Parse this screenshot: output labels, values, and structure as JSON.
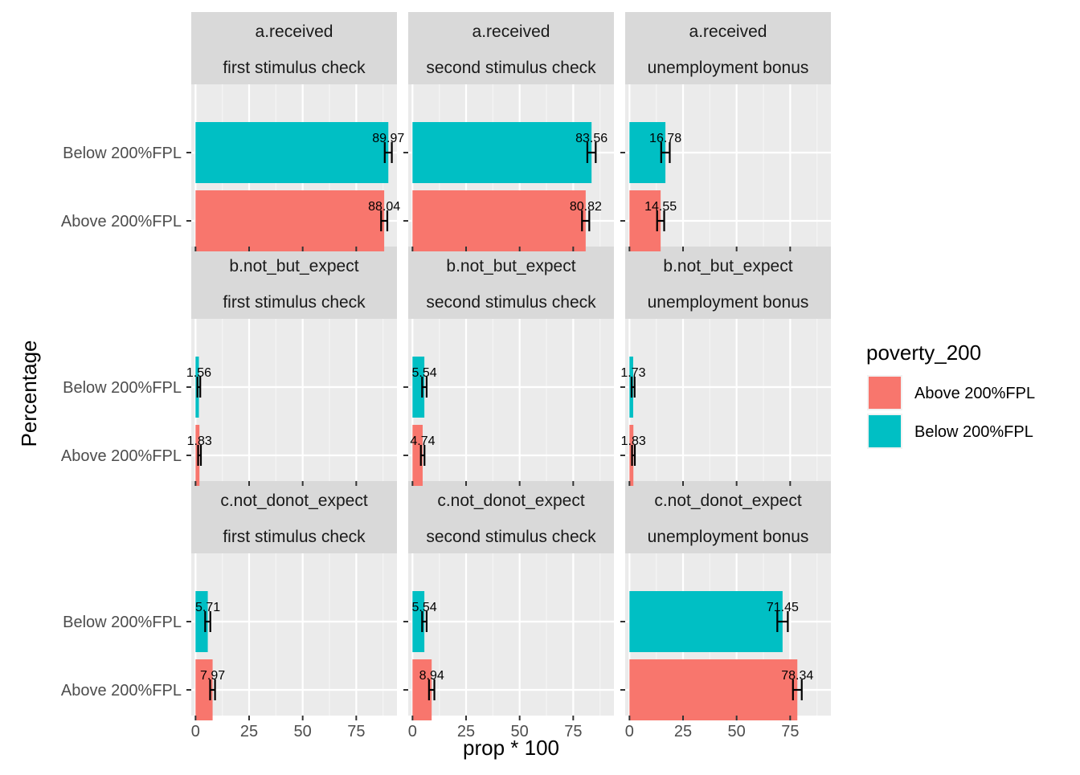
{
  "chart_data": {
    "type": "bar",
    "orientation": "horizontal",
    "facet_rows": [
      "a.received",
      "b.not_but_expect",
      "c.not_donot_expect"
    ],
    "facet_cols": [
      "first stimulus check",
      "second stimulus check",
      "unemployment bonus"
    ],
    "categories": [
      "Above 200%FPL",
      "Below 200%FPL"
    ],
    "xlabel": "prop * 100",
    "ylabel": "Percentage",
    "xlim": [
      -2,
      94
    ],
    "xticks": [
      0,
      25,
      50,
      75
    ],
    "legend": {
      "title": "poverty_200",
      "position": "right",
      "entries": [
        "Above 200%FPL",
        "Below 200%FPL"
      ]
    },
    "colors": {
      "Above 200%FPL": "#F8766D",
      "Below 200%FPL": "#00BFC4"
    },
    "grid": true,
    "panels": [
      {
        "row": "a.received",
        "col": "first stimulus check",
        "bars": [
          {
            "group": "Above 200%FPL",
            "value": 88.04,
            "label": "88.04",
            "err_low": 86.6,
            "err_high": 89.5
          },
          {
            "group": "Below 200%FPL",
            "value": 89.97,
            "label": "89.97",
            "err_low": 88.3,
            "err_high": 91.6
          }
        ]
      },
      {
        "row": "a.received",
        "col": "second stimulus check",
        "bars": [
          {
            "group": "Above 200%FPL",
            "value": 80.82,
            "label": "80.82",
            "err_low": 79.1,
            "err_high": 82.5
          },
          {
            "group": "Below 200%FPL",
            "value": 83.56,
            "label": "83.56",
            "err_low": 81.6,
            "err_high": 85.5
          }
        ]
      },
      {
        "row": "a.received",
        "col": "unemployment bonus",
        "bars": [
          {
            "group": "Above 200%FPL",
            "value": 14.55,
            "label": "14.55",
            "err_low": 12.9,
            "err_high": 16.2
          },
          {
            "group": "Below 200%FPL",
            "value": 16.78,
            "label": "16.78",
            "err_low": 14.8,
            "err_high": 18.8
          }
        ]
      },
      {
        "row": "b.not_but_expect",
        "col": "first stimulus check",
        "bars": [
          {
            "group": "Above 200%FPL",
            "value": 1.83,
            "label": "1.83",
            "err_low": 1.2,
            "err_high": 2.5
          },
          {
            "group": "Below 200%FPL",
            "value": 1.56,
            "label": "1.56",
            "err_low": 0.9,
            "err_high": 2.2
          }
        ]
      },
      {
        "row": "b.not_but_expect",
        "col": "second stimulus check",
        "bars": [
          {
            "group": "Above 200%FPL",
            "value": 4.74,
            "label": "4.74",
            "err_low": 3.9,
            "err_high": 5.6
          },
          {
            "group": "Below 200%FPL",
            "value": 5.54,
            "label": "5.54",
            "err_low": 4.5,
            "err_high": 6.6
          }
        ]
      },
      {
        "row": "b.not_but_expect",
        "col": "unemployment bonus",
        "bars": [
          {
            "group": "Above 200%FPL",
            "value": 1.83,
            "label": "1.83",
            "err_low": 1.2,
            "err_high": 2.5
          },
          {
            "group": "Below 200%FPL",
            "value": 1.73,
            "label": "1.73",
            "err_low": 1.0,
            "err_high": 2.4
          }
        ]
      },
      {
        "row": "c.not_donot_expect",
        "col": "first stimulus check",
        "bars": [
          {
            "group": "Above 200%FPL",
            "value": 7.97,
            "label": "7.97",
            "err_low": 6.8,
            "err_high": 9.1
          },
          {
            "group": "Below 200%FPL",
            "value": 5.71,
            "label": "5.71",
            "err_low": 4.5,
            "err_high": 6.9
          }
        ]
      },
      {
        "row": "c.not_donot_expect",
        "col": "second stimulus check",
        "bars": [
          {
            "group": "Above 200%FPL",
            "value": 8.94,
            "label": "8.94",
            "err_low": 7.7,
            "err_high": 10.2
          },
          {
            "group": "Below 200%FPL",
            "value": 5.54,
            "label": "5.54",
            "err_low": 4.5,
            "err_high": 6.6
          }
        ]
      },
      {
        "row": "c.not_donot_expect",
        "col": "unemployment bonus",
        "bars": [
          {
            "group": "Above 200%FPL",
            "value": 78.34,
            "label": "78.34",
            "err_low": 76.3,
            "err_high": 80.4
          },
          {
            "group": "Below 200%FPL",
            "value": 71.45,
            "label": "71.45",
            "err_low": 69.0,
            "err_high": 73.9
          }
        ]
      }
    ]
  }
}
